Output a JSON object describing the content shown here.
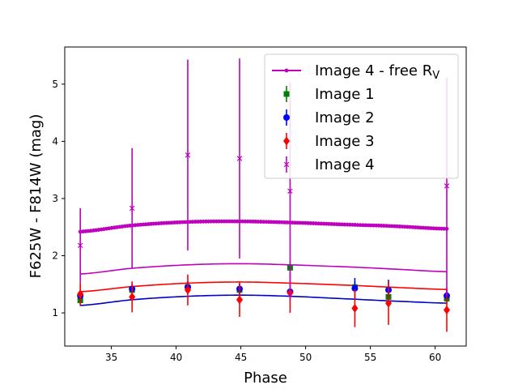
{
  "chart_data": {
    "type": "scatter",
    "title": "",
    "xlabel": "Phase",
    "ylabel": "F625W - F814W (mag)",
    "xlim": [
      31.4,
      62.4
    ],
    "ylim": [
      0.42,
      5.65
    ],
    "xticks": [
      35,
      40,
      45,
      50,
      55,
      60
    ],
    "yticks": [
      1,
      2,
      3,
      4,
      5
    ],
    "grid": false,
    "legend_position": "top-right",
    "series": [
      {
        "name": "Image 1",
        "marker": "square",
        "color": "#008000",
        "points": [
          {
            "x": 32.6,
            "y": 1.22,
            "err": 0.1
          },
          {
            "x": 36.6,
            "y": 1.4,
            "err": 0.1
          },
          {
            "x": 40.9,
            "y": 1.45,
            "err": 0.1
          },
          {
            "x": 44.9,
            "y": 1.4,
            "err": 0.1
          },
          {
            "x": 48.8,
            "y": 1.79,
            "err": 0.1
          },
          {
            "x": 53.8,
            "y": 1.45,
            "err": 0.1
          },
          {
            "x": 56.4,
            "y": 1.28,
            "err": 0.1
          },
          {
            "x": 60.9,
            "y": 1.25,
            "err": 0.1
          }
        ]
      },
      {
        "name": "Image 2",
        "marker": "circle",
        "color": "#0000ff",
        "points": [
          {
            "x": 32.6,
            "y": 1.3,
            "err": 0.1
          },
          {
            "x": 36.6,
            "y": 1.42,
            "err": 0.1
          },
          {
            "x": 40.9,
            "y": 1.45,
            "err": 0.1
          },
          {
            "x": 44.9,
            "y": 1.42,
            "err": 0.1
          },
          {
            "x": 48.8,
            "y": 1.37,
            "err": 0.1
          },
          {
            "x": 53.8,
            "y": 1.43,
            "err": 0.18
          },
          {
            "x": 56.4,
            "y": 1.4,
            "err": 0.18
          },
          {
            "x": 60.9,
            "y": 1.3,
            "err": 0.1
          }
        ]
      },
      {
        "name": "Image 3",
        "marker": "diamond",
        "color": "#ff0000",
        "points": [
          {
            "x": 32.6,
            "y": 1.33,
            "err": 0.2
          },
          {
            "x": 36.6,
            "y": 1.28,
            "err": 0.27
          },
          {
            "x": 40.9,
            "y": 1.4,
            "err": 0.27
          },
          {
            "x": 44.9,
            "y": 1.23,
            "err": 0.3
          },
          {
            "x": 48.8,
            "y": 1.35,
            "err": 0.35
          },
          {
            "x": 53.8,
            "y": 1.08,
            "err": 0.33
          },
          {
            "x": 56.4,
            "y": 1.17,
            "err": 0.38
          },
          {
            "x": 60.9,
            "y": 1.05,
            "err": 0.38
          }
        ]
      },
      {
        "name": "Image 4",
        "marker": "x",
        "color": "#bf00bf",
        "points": [
          {
            "x": 32.6,
            "y": 2.18,
            "err": 0.65
          },
          {
            "x": 36.6,
            "y": 2.83,
            "err": 1.05
          },
          {
            "x": 40.9,
            "y": 3.76,
            "err": 1.67
          },
          {
            "x": 44.9,
            "y": 3.7,
            "err": 1.75
          },
          {
            "x": 48.8,
            "y": 3.13,
            "err": 1.9
          },
          {
            "x": 60.9,
            "y": 3.22,
            "err": 1.9
          }
        ]
      }
    ],
    "model_curves": [
      {
        "name": "Image 4 - free R_V",
        "color": "#bf00bf",
        "style": "line-with-dot-markers",
        "x_range": [
          32.6,
          60.9
        ],
        "y_at": [
          [
            32.6,
            2.42
          ],
          [
            36.6,
            2.53
          ],
          [
            40.9,
            2.59
          ],
          [
            44.9,
            2.6
          ],
          [
            48.8,
            2.58
          ],
          [
            53.8,
            2.54
          ],
          [
            56.4,
            2.52
          ],
          [
            60.9,
            2.47
          ]
        ]
      },
      {
        "name": "",
        "color": "#bf00bf",
        "style": "line",
        "x_range": [
          32.6,
          60.9
        ],
        "y_at": [
          [
            32.6,
            1.68
          ],
          [
            36.6,
            1.78
          ],
          [
            40.9,
            1.84
          ],
          [
            44.9,
            1.86
          ],
          [
            48.8,
            1.84
          ],
          [
            53.8,
            1.8
          ],
          [
            56.4,
            1.77
          ],
          [
            60.9,
            1.72
          ]
        ]
      },
      {
        "name": "",
        "color": "#ff0000",
        "style": "line",
        "x_range": [
          32.6,
          60.9
        ],
        "y_at": [
          [
            32.6,
            1.37
          ],
          [
            36.6,
            1.46
          ],
          [
            40.9,
            1.52
          ],
          [
            44.9,
            1.54
          ],
          [
            48.8,
            1.52
          ],
          [
            53.8,
            1.48
          ],
          [
            56.4,
            1.45
          ],
          [
            60.9,
            1.41
          ]
        ]
      },
      {
        "name": "",
        "color": "#0000c8",
        "style": "line",
        "x_range": [
          32.6,
          60.9
        ],
        "y_at": [
          [
            32.6,
            1.13
          ],
          [
            36.6,
            1.23
          ],
          [
            40.9,
            1.29
          ],
          [
            44.9,
            1.31
          ],
          [
            48.8,
            1.29
          ],
          [
            53.8,
            1.24
          ],
          [
            56.4,
            1.21
          ],
          [
            60.9,
            1.17
          ]
        ]
      }
    ],
    "legend": [
      {
        "label": "Image 4 - free R",
        "sub": "V",
        "color": "#bf00bf",
        "marker": "line-dot"
      },
      {
        "label": "Image 1",
        "sub": "",
        "color": "#008000",
        "marker": "square"
      },
      {
        "label": "Image 2",
        "sub": "",
        "color": "#0000ff",
        "marker": "circle"
      },
      {
        "label": "Image 3",
        "sub": "",
        "color": "#ff0000",
        "marker": "diamond"
      },
      {
        "label": "Image 4",
        "sub": "",
        "color": "#bf00bf",
        "marker": "x"
      }
    ]
  }
}
